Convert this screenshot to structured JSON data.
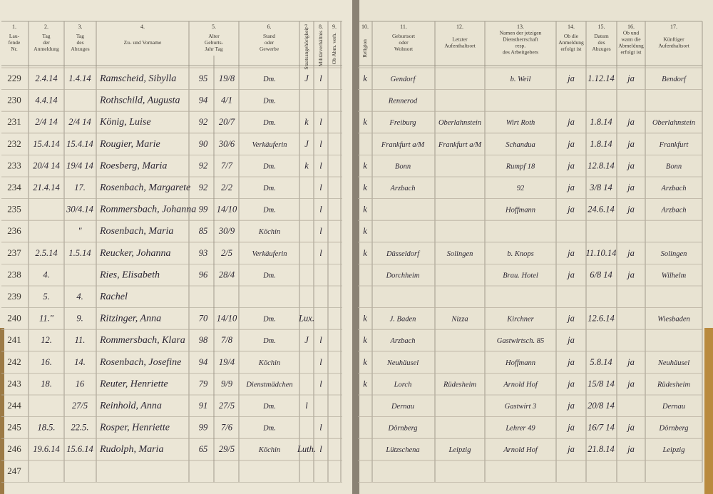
{
  "header": {
    "left": {
      "columns": [
        {
          "num": "1.",
          "lines": [
            "Lau-",
            "fende",
            "Nr."
          ]
        },
        {
          "num": "2.",
          "lines": [
            "Tag",
            "der",
            "Anmeldung"
          ]
        },
        {
          "num": "3.",
          "lines": [
            "Tag",
            "des",
            "Abzuges"
          ]
        },
        {
          "num": "4.",
          "lines": [
            "Zu- und Vorname"
          ]
        },
        {
          "num": "5.",
          "lines": [
            "Alter",
            "Geburts-",
            "Jahr   Tag"
          ]
        },
        {
          "num": "6.",
          "lines": [
            "Stand",
            "oder",
            "Gewerbe"
          ]
        },
        {
          "num": "7.",
          "lines": [
            "Staatsangehörigkeit"
          ]
        },
        {
          "num": "8.",
          "lines": [
            "Militärverhältnis"
          ]
        },
        {
          "num": "9.",
          "lines": [
            "Ob Abm. verh."
          ]
        }
      ]
    },
    "right": {
      "columns": [
        {
          "num": "10.",
          "lines": [
            "Religion"
          ]
        },
        {
          "num": "11.",
          "lines": [
            "Geburtsort",
            "oder",
            "Wohnort"
          ]
        },
        {
          "num": "12.",
          "lines": [
            "Letzter",
            "Aufenthaltsort"
          ]
        },
        {
          "num": "13.",
          "lines": [
            "Namen der jetzigen",
            "Dienstherrschaft",
            "resp.",
            "des Arbeitgebers"
          ]
        },
        {
          "num": "14.",
          "lines": [
            "Ob die",
            "Anmeldung",
            "erfolgt ist"
          ]
        },
        {
          "num": "15.",
          "lines": [
            "Datum",
            "des",
            "Abzuges"
          ]
        },
        {
          "num": "16.",
          "lines": [
            "Ob und",
            "wann die",
            "Abmeldung",
            "erfolgt ist"
          ]
        },
        {
          "num": "17.",
          "lines": [
            "Künftiger",
            "Aufenthaltsort"
          ]
        }
      ]
    }
  },
  "rows": [
    {
      "nr": "229",
      "cells": [
        "2.4.14",
        "1.4.14",
        "Ramscheid, Sibylla",
        "95",
        "19/8",
        "Dm.",
        "J",
        "l",
        "k",
        "Gendorf",
        null,
        "b. Weil",
        "ja",
        "1.12.14",
        "ja",
        "Bendorf"
      ]
    },
    {
      "nr": "230",
      "cells": [
        "4.4.14",
        null,
        "Rothschild, Augusta",
        "94",
        "4/1",
        "Dm.",
        null,
        null,
        null,
        "Rennerod",
        null,
        null,
        null,
        null,
        null,
        null
      ]
    },
    {
      "nr": "231",
      "cells": [
        "2/4 14",
        "2/4 14",
        "König, Luise",
        "92",
        "20/7",
        "Dm.",
        "k",
        "l",
        "k",
        "Freiburg",
        "Oberlahnstein",
        "Wirt Roth",
        "ja",
        "1.8.14",
        "ja",
        "Oberlahnstein"
      ]
    },
    {
      "nr": "232",
      "cells": [
        "15.4.14",
        "15.4.14",
        "Rougier, Marie",
        "90",
        "30/6",
        "Verkäuferin",
        "J",
        "l",
        null,
        "Frankfurt a/M",
        "Frankfurt a/M",
        "Schandua",
        "ja",
        "1.8.14",
        "ja",
        "Frankfurt"
      ]
    },
    {
      "nr": "233",
      "cells": [
        "20/4 14",
        "19/4 14",
        "Roesberg, Maria",
        "92",
        "7/7",
        "Dm.",
        "k",
        "l",
        "k",
        "Bonn",
        null,
        "Rumpf 18",
        "ja",
        "12.8.14",
        "ja",
        "Bonn"
      ]
    },
    {
      "nr": "234",
      "cells": [
        "21.4.14",
        "17.",
        "Rosenbach, Margarete",
        "92",
        "2/2",
        "Dm.",
        null,
        "l",
        "k",
        "Arzbach",
        null,
        "92",
        "ja",
        "3/8 14",
        "ja",
        "Arzbach"
      ]
    },
    {
      "nr": "235",
      "cells": [
        null,
        "30/4.14",
        "Rommersbach, Johanna",
        "99",
        "14/10",
        "Dm.",
        null,
        "l",
        "k",
        null,
        null,
        "Hoffmann",
        "ja",
        "24.6.14",
        "ja",
        "Arzbach"
      ]
    },
    {
      "nr": "236",
      "cells": [
        null,
        "\"",
        "Rosenbach, Maria",
        "85",
        "30/9",
        "Köchin",
        null,
        "l",
        "k",
        null,
        null,
        null,
        null,
        null,
        null,
        null
      ]
    },
    {
      "nr": "237",
      "cells": [
        "2.5.14",
        "1.5.14",
        "Reucker, Johanna",
        "93",
        "2/5",
        "Verkäuferin",
        null,
        "l",
        "k",
        "Düsseldorf",
        "Solingen",
        "b. Knops",
        "ja",
        "11.10.14",
        "ja",
        "Solingen"
      ]
    },
    {
      "nr": "238",
      "cells": [
        "4.",
        null,
        "Ries, Elisabeth",
        "96",
        "28/4",
        "Dm.",
        null,
        null,
        null,
        "Dorchheim",
        null,
        "Brau. Hotel",
        "ja",
        "6/8 14",
        "ja",
        "Wilhelm"
      ]
    },
    {
      "nr": "239",
      "cells": [
        "5.",
        "4.",
        "Rachel",
        null,
        null,
        null,
        null,
        null,
        null,
        null,
        null,
        null,
        null,
        null,
        null,
        null
      ]
    },
    {
      "nr": "240",
      "cells": [
        "11.\"",
        "9.",
        "Ritzinger, Anna",
        "70",
        "14/10",
        "Dm.",
        "Lux.",
        null,
        "k",
        "J. Baden",
        "Nizza",
        "Kirchner",
        "ja",
        "12.6.14",
        null,
        "Wiesbaden"
      ]
    },
    {
      "nr": "241",
      "cells": [
        "12.",
        "11.",
        "Rommersbach, Klara",
        "98",
        "7/8",
        "Dm.",
        "J",
        "l",
        "k",
        "Arzbach",
        null,
        "Gastwirtsch. 85",
        "ja",
        null,
        null,
        null
      ]
    },
    {
      "nr": "242",
      "cells": [
        "16.",
        "14.",
        "Rosenbach, Josefine",
        "94",
        "19/4",
        "Köchin",
        null,
        "l",
        "k",
        "Neuhäusel",
        null,
        "Hoffmann",
        "ja",
        "5.8.14",
        "ja",
        "Neuhäusel"
      ]
    },
    {
      "nr": "243",
      "cells": [
        "18.",
        "16",
        "Reuter, Henriette",
        "79",
        "9/9",
        "Dienstmädchen",
        null,
        "l",
        "k",
        "Lorch",
        "Rüdesheim",
        "Arnold Hof",
        "ja",
        "15/8 14",
        "ja",
        "Rüdesheim"
      ]
    },
    {
      "nr": "244",
      "cells": [
        null,
        "27/5",
        "Reinhold, Anna",
        "91",
        "27/5",
        "Dm.",
        "l",
        null,
        null,
        "Dernau",
        null,
        "Gastwirt 3",
        "ja",
        "20/8 14",
        null,
        "Dernau"
      ]
    },
    {
      "nr": "245",
      "cells": [
        "18.5.",
        "22.5.",
        "Rosper, Henriette",
        "99",
        "7/6",
        "Dm.",
        null,
        "l",
        null,
        "Dörnberg",
        null,
        "Lehrer 49",
        "ja",
        "16/7 14",
        "ja",
        "Dörnberg"
      ]
    },
    {
      "nr": "246",
      "cells": [
        "19.6.14",
        "15.6.14",
        "Rudolph, Maria",
        "65",
        "29/5",
        "Köchin",
        "Luth.",
        "l",
        null,
        "Lützschena",
        "Leipzig",
        "Arnold Hof",
        "ja",
        "21.8.14",
        "ja",
        "Leipzig"
      ]
    },
    {
      "nr": "247",
      "cells": []
    }
  ]
}
